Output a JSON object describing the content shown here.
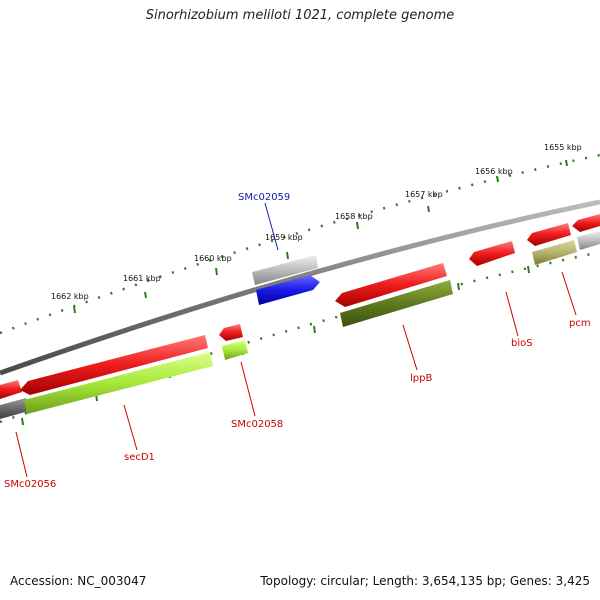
{
  "title": "Sinorhizobium meliloti 1021, complete genome",
  "footer": {
    "accession": "Accession: NC_003047",
    "topology": "Topology: circular; Length: 3,654,135 bp; Genes: 3,425"
  },
  "scale_labels": [
    "1655 kbp",
    "1656 kbp",
    "1657 kbp",
    "1658 kbp",
    "1659 kbp",
    "1660 kbp",
    "1661 kbp",
    "1662 kbp"
  ],
  "gene_labels": [
    "SMc02059",
    "SMc02058",
    "SMc02056",
    "secD1",
    "lppB",
    "bioS",
    "pcm"
  ],
  "colors": {
    "forward_cds": "#e11b1b",
    "reverse_cds": "#a7e83a",
    "dark_green_cds": "#5f7a1e",
    "olive_cds": "#b7b26a",
    "grey_feature": "#bdbdbd",
    "blue_feature": "#1a1ae6",
    "backbone": "#808080",
    "ticks": "#2e7d1f",
    "label_red": "#cc0000",
    "label_blue": "#1a1aa6"
  }
}
